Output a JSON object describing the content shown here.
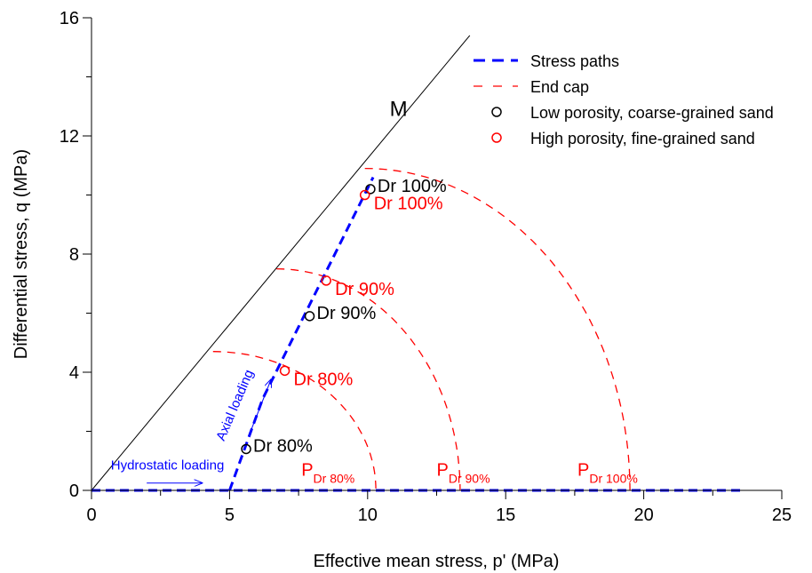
{
  "chart_data": {
    "type": "line",
    "xlabel": "Effective mean stress, p' (MPa)",
    "ylabel": "Differential stress, q (MPa)",
    "xlim": [
      0,
      25
    ],
    "ylim": [
      0,
      16
    ],
    "x_ticks": [
      0,
      5,
      10,
      15,
      20,
      25
    ],
    "y_ticks": [
      0,
      4,
      8,
      12,
      16
    ],
    "x_tick_labels": [
      "0",
      "5",
      "10",
      "15",
      "20",
      "25"
    ],
    "y_tick_labels": [
      "0",
      "4",
      "8",
      "12",
      "16"
    ],
    "grid": false,
    "legend_position": "top-right",
    "colors": {
      "stress_path": "#0000ff",
      "end_cap": "#ff0000",
      "black": "#000000"
    },
    "legend": [
      {
        "label": "Stress paths",
        "kind": "line",
        "color": "#0000ff",
        "dash": "long"
      },
      {
        "label": "End cap",
        "kind": "line",
        "color": "#ff0000",
        "dash": "short"
      },
      {
        "label": "Low porosity, coarse-grained sand",
        "kind": "marker",
        "color": "#000000"
      },
      {
        "label": "High porosity, fine-grained sand",
        "kind": "marker",
        "color": "#ff0000"
      }
    ],
    "m_line": {
      "label": "M",
      "points": [
        [
          0,
          0
        ],
        [
          13.7,
          15.4
        ]
      ]
    },
    "stress_paths": [
      {
        "points": [
          [
            0,
            0
          ],
          [
            23.5,
            0
          ]
        ]
      },
      {
        "points": [
          [
            5.0,
            0
          ],
          [
            6.2,
            3.1
          ],
          [
            10.2,
            10.6
          ]
        ]
      }
    ],
    "end_caps": [
      {
        "center": 4.4,
        "a": 5.9,
        "b": 4.7
      },
      {
        "center": 6.7,
        "a": 6.65,
        "b": 7.5
      },
      {
        "center": 9.9,
        "a": 9.6,
        "b": 10.9
      }
    ],
    "points_low": [
      {
        "x": 5.6,
        "y": 1.4,
        "label": "Dr 80%"
      },
      {
        "x": 7.9,
        "y": 5.9,
        "label": "Dr 90%"
      },
      {
        "x": 10.1,
        "y": 10.2,
        "label": "Dr 100%"
      }
    ],
    "points_high": [
      {
        "x": 7.0,
        "y": 4.05,
        "label": "Dr 80%"
      },
      {
        "x": 8.5,
        "y": 7.1,
        "label": "Dr 90%"
      },
      {
        "x": 9.9,
        "y": 10.0,
        "label": "Dr 100%"
      }
    ],
    "cap_labels": [
      {
        "main": "P",
        "sub": "Dr 80%",
        "x": 7.6,
        "y": 0.5
      },
      {
        "main": "P",
        "sub": "Dr 90%",
        "x": 12.5,
        "y": 0.5
      },
      {
        "main": "P",
        "sub": "Dr 100%",
        "x": 17.6,
        "y": 0.5
      }
    ],
    "annotations": [
      {
        "text": "Hydrostatic loading",
        "x": 0.7,
        "y": 0.7
      },
      {
        "text": "Axial loading",
        "x": 4.8,
        "y": 1.65
      }
    ],
    "arrows": [
      {
        "from": [
          2.0,
          0.25
        ],
        "to": [
          4.0,
          0.25
        ]
      },
      {
        "from": [
          5.72,
          1.9
        ],
        "to": [
          6.5,
          3.75
        ]
      }
    ]
  }
}
